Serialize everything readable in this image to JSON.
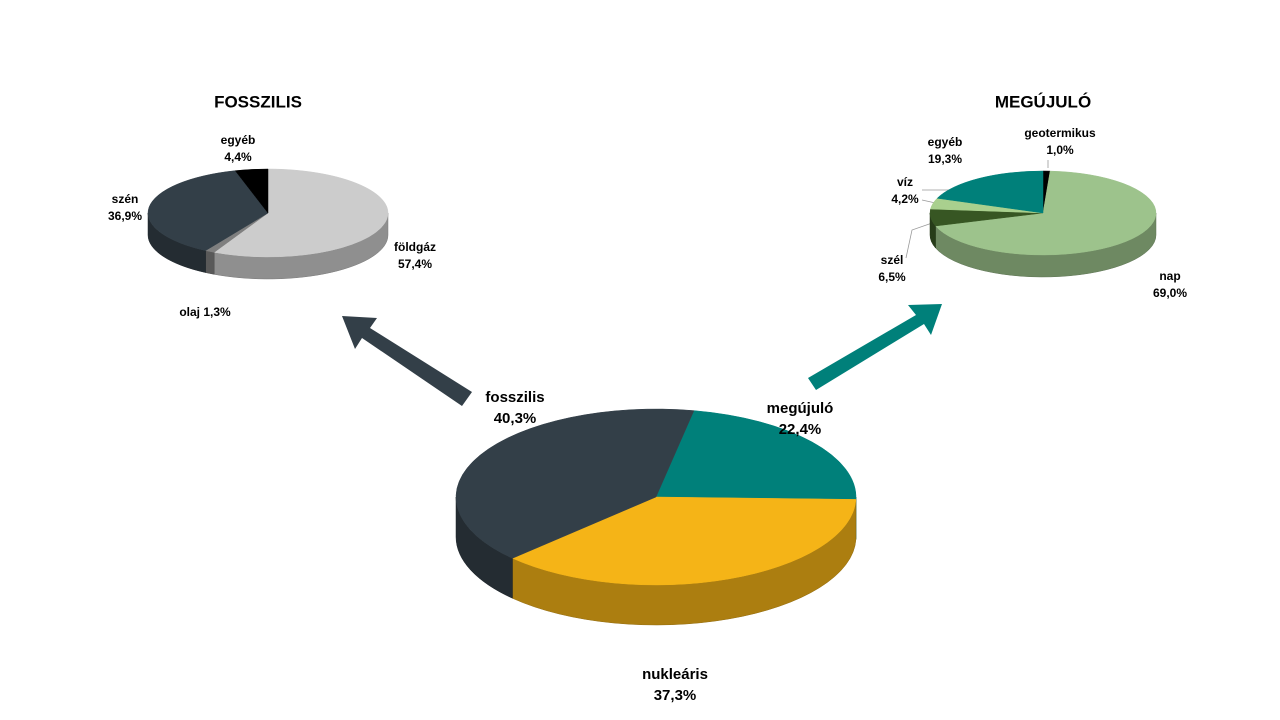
{
  "chart_data": [
    {
      "type": "pie",
      "categories": [
        "megújuló",
        "nukleáris",
        "fosszilis"
      ],
      "values": [
        22.4,
        37.3,
        40.3
      ],
      "value_labels": [
        "22,4%",
        "37,3%",
        "40,3%"
      ],
      "colors": [
        "#00807a",
        "#f5b417",
        "#333f48"
      ]
    },
    {
      "type": "pie",
      "title": "FOSSZILIS",
      "categories": [
        "földgáz",
        "olaj",
        "szén",
        "egyéb"
      ],
      "values": [
        57.4,
        1.3,
        36.9,
        4.4
      ],
      "value_labels": [
        "57,4%",
        "1,3%",
        "36,9%",
        "4,4%"
      ],
      "colors": [
        "#cccccc",
        "#7f7f7f",
        "#333f48",
        "#000000"
      ]
    },
    {
      "type": "pie",
      "title": "MEGÚJULÓ",
      "categories": [
        "geotermikus",
        "nap",
        "szél",
        "víz",
        "egyéb"
      ],
      "values": [
        1.0,
        69.0,
        6.5,
        4.2,
        19.3
      ],
      "value_labels": [
        "1,0%",
        "69,0%",
        "6,5%",
        "4,2%",
        "19,3%"
      ],
      "colors": [
        "#000000",
        "#9dc38c",
        "#375623",
        "#a9d08e",
        "#00807a"
      ]
    }
  ]
}
